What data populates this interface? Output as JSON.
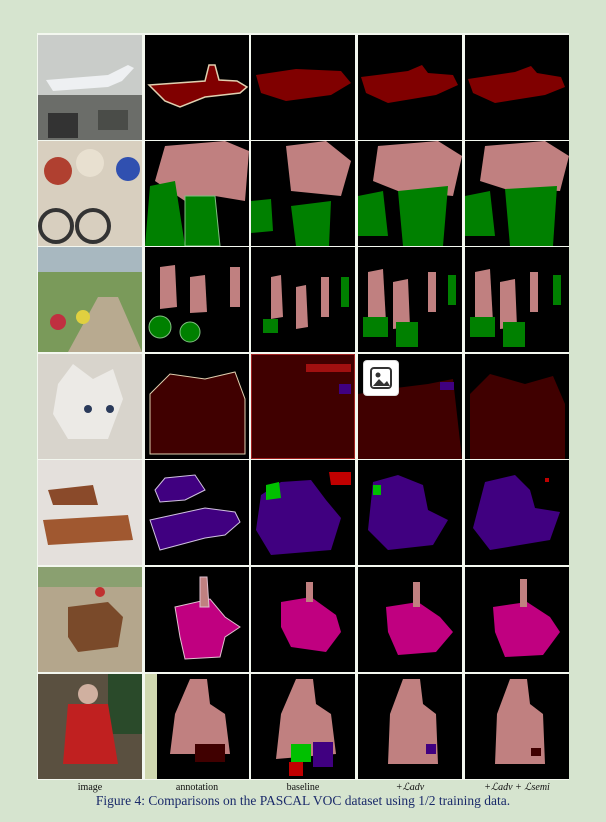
{
  "figure": {
    "caption": "Figure 4: Comparisons on the PASCAL VOC dataset using 1/2 training data.",
    "column_labels": [
      "image",
      "annotation",
      "baseline",
      "+ℒadv",
      "+ℒadv + ℒsemi"
    ],
    "rows": [
      "airplane",
      "cyclists",
      "bikers-trail",
      "cat",
      "dogs-sleeping",
      "horse-rider",
      "person-christmas"
    ]
  },
  "colors": {
    "background": "#d6e4cf",
    "aeroplane": "#800000",
    "person": "#c08080",
    "bicycle": "#008000",
    "cat": "#400000",
    "dog": "#400080",
    "horse": "#c00080",
    "chair": "#c00000",
    "caption": "#1a2a6a"
  },
  "icons": {
    "overlay": "image-placeholder-icon"
  }
}
